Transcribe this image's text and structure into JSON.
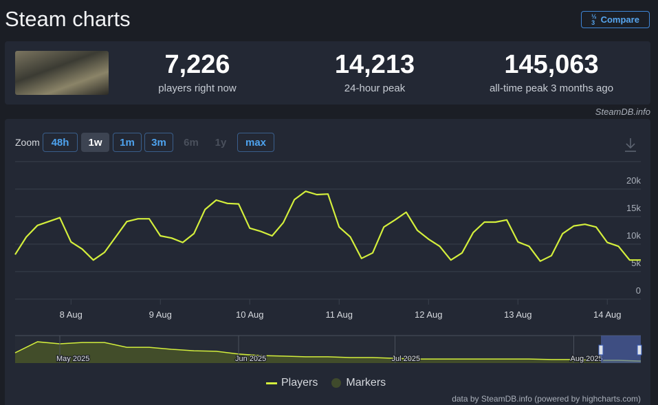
{
  "header": {
    "title": "Steam charts",
    "compare": "Compare"
  },
  "stats": [
    {
      "value": "7,226",
      "label": "players right now"
    },
    {
      "value": "14,213",
      "label": "24-hour peak"
    },
    {
      "value": "145,063",
      "label": "all-time peak 3 months ago"
    }
  ],
  "source": "SteamDB.info",
  "zoom": {
    "label": "Zoom",
    "options": [
      "48h",
      "1w",
      "1m",
      "3m",
      "6m",
      "1y",
      "max"
    ],
    "active": 1,
    "disabled": [
      4,
      5
    ]
  },
  "chart_data": [
    {
      "type": "line",
      "categories": [
        null,
        null,
        null,
        null,
        null,
        "8 Aug",
        null,
        null,
        null,
        null,
        null,
        null,
        null,
        "9 Aug",
        null,
        null,
        null,
        null,
        null,
        null,
        null,
        "10 Aug",
        null,
        null,
        null,
        null,
        null,
        null,
        null,
        "11 Aug",
        null,
        null,
        null,
        null,
        null,
        null,
        null,
        "12 Aug",
        null,
        null,
        null,
        null,
        null,
        null,
        null,
        "13 Aug",
        null,
        null,
        null,
        null,
        null,
        null,
        null,
        "14 Aug",
        null,
        null,
        null
      ],
      "series": [
        {
          "name": "Players",
          "color": "#d4ef3c",
          "values": [
            8100,
            11300,
            13400,
            14100,
            14800,
            10400,
            9100,
            7100,
            8500,
            11300,
            14100,
            14600,
            14600,
            11500,
            11100,
            10300,
            11900,
            16300,
            18000,
            17400,
            17300,
            12900,
            12300,
            11500,
            13900,
            18100,
            19600,
            19000,
            19100,
            13100,
            11300,
            7400,
            8400,
            13100,
            14400,
            15800,
            12500,
            10900,
            9600,
            7100,
            8400,
            12100,
            14000,
            14000,
            14400,
            10400,
            9600,
            6900,
            7900,
            11900,
            13300,
            13600,
            13100,
            10300,
            9600,
            7100,
            7100
          ]
        }
      ],
      "markers": {
        "name": "Markers",
        "color": "#3f4a2c"
      },
      "ylim": [
        0,
        25000
      ],
      "yticks": [
        0,
        {
          "value": 5000,
          "label": "5k"
        },
        {
          "value": 10000,
          "label": "10k"
        },
        {
          "value": 15000,
          "label": "15k"
        },
        {
          "value": 20000,
          "label": "20k"
        }
      ],
      "grid": true
    },
    {
      "type": "area",
      "categories": [
        null,
        null,
        "May 2025",
        null,
        null,
        null,
        null,
        null,
        null,
        null,
        "Jun 2025",
        null,
        null,
        null,
        null,
        null,
        null,
        "Jul 2025",
        null,
        null,
        null,
        null,
        null,
        null,
        null,
        "Aug 2025",
        null,
        null,
        null
      ],
      "values": [
        56000,
        116000,
        105000,
        112000,
        112000,
        86000,
        86000,
        75000,
        67000,
        64000,
        49000,
        41000,
        38000,
        34000,
        34000,
        30000,
        30000,
        26000,
        22000,
        22000,
        22000,
        22000,
        22000,
        22000,
        19000,
        19000,
        15000,
        15000,
        11000
      ],
      "color": "#d4ef3c",
      "fill": "#4a5628",
      "ylim": [
        0,
        150000
      ]
    }
  ],
  "credits": "data by SteamDB.info (powered by highcharts.com)"
}
